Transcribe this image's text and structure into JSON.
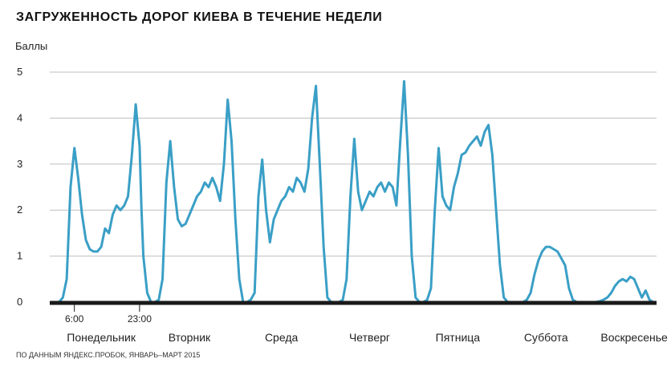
{
  "chart_data": {
    "type": "line",
    "title": "ЗАГРУЖЕННОСТЬ ДОРОГ КИЕВА В ТЕЧЕНИЕ НЕДЕЛИ",
    "ylabel": "Баллы",
    "xlabel": "",
    "source": "ПО ДАННЫМ ЯНДЕКС.ПРОБОК, ЯНВАРЬ–МАРТ 2015",
    "ylim": [
      0,
      5
    ],
    "yticks": [
      "0",
      "1",
      "2",
      "3",
      "4",
      "5"
    ],
    "time_markers": [
      {
        "label": "6:00",
        "hour": 6
      },
      {
        "label": "23:00",
        "hour": 23
      }
    ],
    "categories": [
      "Понедельник",
      "Вторник",
      "Среда",
      "Четверг",
      "Пятница",
      "Суббота",
      "Воскресенье"
    ],
    "x_unit": "hours from Monday 00:00",
    "grid": true,
    "line_color": "#3a9fc6",
    "series": [
      {
        "points": [
          [
            0,
            0
          ],
          [
            1,
            0
          ],
          [
            2,
            0
          ],
          [
            3,
            0.1
          ],
          [
            4,
            0.5
          ],
          [
            5,
            2.5
          ],
          [
            6,
            3.35
          ],
          [
            7,
            2.7
          ],
          [
            8,
            1.9
          ],
          [
            9,
            1.35
          ],
          [
            10,
            1.15
          ],
          [
            11,
            1.1
          ],
          [
            12,
            1.1
          ],
          [
            13,
            1.2
          ],
          [
            14,
            1.6
          ],
          [
            15,
            1.5
          ],
          [
            16,
            1.9
          ],
          [
            17,
            2.1
          ],
          [
            18,
            2.0
          ],
          [
            19,
            2.1
          ],
          [
            20,
            2.3
          ],
          [
            21,
            3.2
          ],
          [
            22,
            4.3
          ],
          [
            23,
            3.4
          ],
          [
            23.5,
            2.0
          ],
          [
            24,
            1.0
          ],
          [
            25,
            0.2
          ],
          [
            26,
            0
          ],
          [
            27,
            0
          ],
          [
            28,
            0.05
          ],
          [
            29,
            0.5
          ],
          [
            30,
            2.6
          ],
          [
            31,
            3.5
          ],
          [
            32,
            2.5
          ],
          [
            33,
            1.8
          ],
          [
            34,
            1.65
          ],
          [
            35,
            1.7
          ],
          [
            36,
            1.9
          ],
          [
            37,
            2.1
          ],
          [
            38,
            2.3
          ],
          [
            39,
            2.4
          ],
          [
            40,
            2.6
          ],
          [
            41,
            2.5
          ],
          [
            42,
            2.7
          ],
          [
            43,
            2.5
          ],
          [
            44,
            2.2
          ],
          [
            45,
            3.0
          ],
          [
            46,
            4.4
          ],
          [
            47,
            3.5
          ],
          [
            48,
            1.8
          ],
          [
            49,
            0.5
          ],
          [
            50,
            0
          ],
          [
            51,
            0
          ],
          [
            52,
            0.05
          ],
          [
            53,
            0.2
          ],
          [
            54,
            2.3
          ],
          [
            55,
            3.1
          ],
          [
            56,
            2.0
          ],
          [
            57,
            1.3
          ],
          [
            58,
            1.8
          ],
          [
            59,
            2.0
          ],
          [
            60,
            2.2
          ],
          [
            61,
            2.3
          ],
          [
            62,
            2.5
          ],
          [
            63,
            2.4
          ],
          [
            64,
            2.7
          ],
          [
            65,
            2.6
          ],
          [
            66,
            2.4
          ],
          [
            67,
            2.9
          ],
          [
            68,
            4.0
          ],
          [
            69,
            4.7
          ],
          [
            70,
            3.0
          ],
          [
            71,
            1.2
          ],
          [
            72,
            0.1
          ],
          [
            73,
            0
          ],
          [
            74,
            0
          ],
          [
            75,
            0
          ],
          [
            76,
            0.05
          ],
          [
            77,
            0.5
          ],
          [
            78,
            2.3
          ],
          [
            79,
            3.55
          ],
          [
            80,
            2.4
          ],
          [
            81,
            2.0
          ],
          [
            82,
            2.2
          ],
          [
            83,
            2.4
          ],
          [
            84,
            2.3
          ],
          [
            85,
            2.5
          ],
          [
            86,
            2.6
          ],
          [
            87,
            2.4
          ],
          [
            88,
            2.6
          ],
          [
            89,
            2.5
          ],
          [
            90,
            2.1
          ],
          [
            91,
            3.5
          ],
          [
            92,
            4.8
          ],
          [
            93,
            3.2
          ],
          [
            94,
            1.0
          ],
          [
            95,
            0.1
          ],
          [
            96,
            0
          ],
          [
            97,
            0
          ],
          [
            98,
            0.05
          ],
          [
            99,
            0.3
          ],
          [
            100,
            2.0
          ],
          [
            101,
            3.35
          ],
          [
            102,
            2.3
          ],
          [
            103,
            2.1
          ],
          [
            104,
            2.0
          ],
          [
            105,
            2.5
          ],
          [
            106,
            2.8
          ],
          [
            107,
            3.2
          ],
          [
            108,
            3.25
          ],
          [
            109,
            3.4
          ],
          [
            110,
            3.5
          ],
          [
            111,
            3.6
          ],
          [
            112,
            3.4
          ],
          [
            113,
            3.7
          ],
          [
            114,
            3.85
          ],
          [
            115,
            3.2
          ],
          [
            116,
            2.0
          ],
          [
            117,
            0.8
          ],
          [
            118,
            0.1
          ],
          [
            119,
            0
          ],
          [
            120,
            0
          ],
          [
            121,
            0
          ],
          [
            122,
            0
          ],
          [
            123,
            0
          ],
          [
            124,
            0.05
          ],
          [
            125,
            0.2
          ],
          [
            126,
            0.6
          ],
          [
            127,
            0.9
          ],
          [
            128,
            1.1
          ],
          [
            129,
            1.2
          ],
          [
            130,
            1.2
          ],
          [
            131,
            1.15
          ],
          [
            132,
            1.1
          ],
          [
            133,
            0.95
          ],
          [
            134,
            0.8
          ],
          [
            135,
            0.3
          ],
          [
            136,
            0.05
          ],
          [
            137,
            0
          ],
          [
            138,
            0
          ],
          [
            139,
            0
          ],
          [
            140,
            0
          ],
          [
            141,
            0
          ],
          [
            142,
            0
          ],
          [
            143,
            0.02
          ],
          [
            144,
            0.05
          ],
          [
            145,
            0.1
          ],
          [
            146,
            0.2
          ],
          [
            147,
            0.35
          ],
          [
            148,
            0.45
          ],
          [
            149,
            0.5
          ],
          [
            150,
            0.45
          ],
          [
            151,
            0.55
          ],
          [
            152,
            0.5
          ],
          [
            153,
            0.3
          ],
          [
            154,
            0.1
          ],
          [
            155,
            0.25
          ],
          [
            156,
            0.05
          ],
          [
            157,
            0
          ]
        ]
      }
    ]
  }
}
